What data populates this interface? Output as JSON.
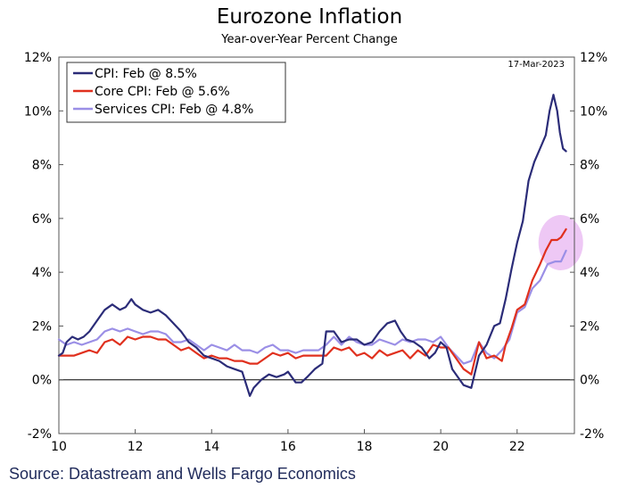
{
  "chart_data": {
    "type": "line",
    "title": "Eurozone Inflation",
    "subtitle": "Year-over-Year Percent Change",
    "date_stamp": "17-Mar-2023",
    "source": "Source: Datastream and Wells Fargo Economics",
    "x_ticks": [
      "10",
      "12",
      "14",
      "16",
      "18",
      "20",
      "22"
    ],
    "x_tick_values": [
      2010,
      2012,
      2014,
      2016,
      2018,
      2020,
      2022
    ],
    "y_ticks": [
      "-2%",
      "0%",
      "2%",
      "4%",
      "6%",
      "8%",
      "10%",
      "12%"
    ],
    "y_tick_values": [
      -2,
      0,
      2,
      4,
      6,
      8,
      10,
      12
    ],
    "xlim": [
      2010,
      2023.5
    ],
    "ylim": [
      -2,
      12
    ],
    "legend_position": "top-left",
    "highlight": {
      "x": 2023.05,
      "y": 5.1
    },
    "colors": {
      "cpi": "#2b2c78",
      "core": "#e0301e",
      "services": "#9b8fe6",
      "highlight": "#e8b6f2",
      "frame": "#555555",
      "stamp": "#c8c8e0"
    },
    "series": [
      {
        "key": "cpi",
        "name": "CPI: Feb @ 8.5%",
        "points": [
          [
            2010.0,
            0.9
          ],
          [
            2010.1,
            1.0
          ],
          [
            2010.2,
            1.4
          ],
          [
            2010.35,
            1.6
          ],
          [
            2010.5,
            1.5
          ],
          [
            2010.65,
            1.6
          ],
          [
            2010.8,
            1.8
          ],
          [
            2011.0,
            2.2
          ],
          [
            2011.2,
            2.6
          ],
          [
            2011.4,
            2.8
          ],
          [
            2011.6,
            2.6
          ],
          [
            2011.75,
            2.7
          ],
          [
            2011.9,
            3.0
          ],
          [
            2012.0,
            2.8
          ],
          [
            2012.2,
            2.6
          ],
          [
            2012.4,
            2.5
          ],
          [
            2012.6,
            2.6
          ],
          [
            2012.8,
            2.4
          ],
          [
            2013.0,
            2.1
          ],
          [
            2013.2,
            1.8
          ],
          [
            2013.4,
            1.4
          ],
          [
            2013.6,
            1.2
          ],
          [
            2013.8,
            0.9
          ],
          [
            2014.0,
            0.8
          ],
          [
            2014.2,
            0.7
          ],
          [
            2014.4,
            0.5
          ],
          [
            2014.6,
            0.4
          ],
          [
            2014.8,
            0.3
          ],
          [
            2015.0,
            -0.6
          ],
          [
            2015.1,
            -0.3
          ],
          [
            2015.3,
            0.0
          ],
          [
            2015.5,
            0.2
          ],
          [
            2015.7,
            0.1
          ],
          [
            2015.9,
            0.2
          ],
          [
            2016.0,
            0.3
          ],
          [
            2016.2,
            -0.1
          ],
          [
            2016.35,
            -0.1
          ],
          [
            2016.5,
            0.1
          ],
          [
            2016.7,
            0.4
          ],
          [
            2016.9,
            0.6
          ],
          [
            2017.0,
            1.8
          ],
          [
            2017.2,
            1.8
          ],
          [
            2017.4,
            1.4
          ],
          [
            2017.6,
            1.5
          ],
          [
            2017.8,
            1.5
          ],
          [
            2018.0,
            1.3
          ],
          [
            2018.2,
            1.4
          ],
          [
            2018.4,
            1.8
          ],
          [
            2018.6,
            2.1
          ],
          [
            2018.8,
            2.2
          ],
          [
            2018.95,
            1.8
          ],
          [
            2019.1,
            1.5
          ],
          [
            2019.3,
            1.4
          ],
          [
            2019.5,
            1.2
          ],
          [
            2019.7,
            0.8
          ],
          [
            2019.85,
            1.0
          ],
          [
            2020.0,
            1.4
          ],
          [
            2020.15,
            1.2
          ],
          [
            2020.3,
            0.4
          ],
          [
            2020.45,
            0.1
          ],
          [
            2020.6,
            -0.2
          ],
          [
            2020.8,
            -0.3
          ],
          [
            2021.0,
            0.9
          ],
          [
            2021.2,
            1.3
          ],
          [
            2021.4,
            2.0
          ],
          [
            2021.55,
            2.1
          ],
          [
            2021.7,
            3.0
          ],
          [
            2021.85,
            4.1
          ],
          [
            2022.0,
            5.1
          ],
          [
            2022.15,
            5.9
          ],
          [
            2022.3,
            7.4
          ],
          [
            2022.45,
            8.1
          ],
          [
            2022.6,
            8.6
          ],
          [
            2022.75,
            9.1
          ],
          [
            2022.85,
            10.0
          ],
          [
            2022.95,
            10.6
          ],
          [
            2023.05,
            10.0
          ],
          [
            2023.12,
            9.2
          ],
          [
            2023.2,
            8.6
          ],
          [
            2023.28,
            8.5
          ]
        ]
      },
      {
        "key": "core",
        "name": "Core CPI: Feb @ 5.6%",
        "points": [
          [
            2010.0,
            0.9
          ],
          [
            2010.2,
            0.9
          ],
          [
            2010.4,
            0.9
          ],
          [
            2010.6,
            1.0
          ],
          [
            2010.8,
            1.1
          ],
          [
            2011.0,
            1.0
          ],
          [
            2011.2,
            1.4
          ],
          [
            2011.4,
            1.5
          ],
          [
            2011.6,
            1.3
          ],
          [
            2011.8,
            1.6
          ],
          [
            2012.0,
            1.5
          ],
          [
            2012.2,
            1.6
          ],
          [
            2012.4,
            1.6
          ],
          [
            2012.6,
            1.5
          ],
          [
            2012.8,
            1.5
          ],
          [
            2013.0,
            1.3
          ],
          [
            2013.2,
            1.1
          ],
          [
            2013.4,
            1.2
          ],
          [
            2013.6,
            1.0
          ],
          [
            2013.8,
            0.8
          ],
          [
            2014.0,
            0.9
          ],
          [
            2014.2,
            0.8
          ],
          [
            2014.4,
            0.8
          ],
          [
            2014.6,
            0.7
          ],
          [
            2014.8,
            0.7
          ],
          [
            2015.0,
            0.6
          ],
          [
            2015.2,
            0.6
          ],
          [
            2015.4,
            0.8
          ],
          [
            2015.6,
            1.0
          ],
          [
            2015.8,
            0.9
          ],
          [
            2016.0,
            1.0
          ],
          [
            2016.2,
            0.8
          ],
          [
            2016.4,
            0.9
          ],
          [
            2016.6,
            0.9
          ],
          [
            2016.8,
            0.9
          ],
          [
            2017.0,
            0.9
          ],
          [
            2017.2,
            1.2
          ],
          [
            2017.4,
            1.1
          ],
          [
            2017.6,
            1.2
          ],
          [
            2017.8,
            0.9
          ],
          [
            2018.0,
            1.0
          ],
          [
            2018.2,
            0.8
          ],
          [
            2018.4,
            1.1
          ],
          [
            2018.6,
            0.9
          ],
          [
            2018.8,
            1.0
          ],
          [
            2019.0,
            1.1
          ],
          [
            2019.2,
            0.8
          ],
          [
            2019.4,
            1.1
          ],
          [
            2019.6,
            0.9
          ],
          [
            2019.8,
            1.3
          ],
          [
            2020.0,
            1.2
          ],
          [
            2020.2,
            1.2
          ],
          [
            2020.4,
            0.8
          ],
          [
            2020.6,
            0.4
          ],
          [
            2020.8,
            0.2
          ],
          [
            2021.0,
            1.4
          ],
          [
            2021.2,
            0.8
          ],
          [
            2021.4,
            0.9
          ],
          [
            2021.6,
            0.7
          ],
          [
            2021.7,
            1.3
          ],
          [
            2021.85,
            1.9
          ],
          [
            2022.0,
            2.6
          ],
          [
            2022.2,
            2.8
          ],
          [
            2022.4,
            3.7
          ],
          [
            2022.6,
            4.3
          ],
          [
            2022.75,
            4.8
          ],
          [
            2022.9,
            5.2
          ],
          [
            2023.05,
            5.2
          ],
          [
            2023.15,
            5.3
          ],
          [
            2023.28,
            5.6
          ]
        ]
      },
      {
        "key": "services",
        "name": "Services CPI: Feb @ 4.8%",
        "points": [
          [
            2010.0,
            1.5
          ],
          [
            2010.2,
            1.3
          ],
          [
            2010.4,
            1.4
          ],
          [
            2010.6,
            1.3
          ],
          [
            2010.8,
            1.4
          ],
          [
            2011.0,
            1.5
          ],
          [
            2011.2,
            1.8
          ],
          [
            2011.4,
            1.9
          ],
          [
            2011.6,
            1.8
          ],
          [
            2011.8,
            1.9
          ],
          [
            2012.0,
            1.8
          ],
          [
            2012.2,
            1.7
          ],
          [
            2012.4,
            1.8
          ],
          [
            2012.6,
            1.8
          ],
          [
            2012.8,
            1.7
          ],
          [
            2013.0,
            1.4
          ],
          [
            2013.2,
            1.4
          ],
          [
            2013.4,
            1.5
          ],
          [
            2013.6,
            1.3
          ],
          [
            2013.8,
            1.1
          ],
          [
            2014.0,
            1.3
          ],
          [
            2014.2,
            1.2
          ],
          [
            2014.4,
            1.1
          ],
          [
            2014.6,
            1.3
          ],
          [
            2014.8,
            1.1
          ],
          [
            2015.0,
            1.1
          ],
          [
            2015.2,
            1.0
          ],
          [
            2015.4,
            1.2
          ],
          [
            2015.6,
            1.3
          ],
          [
            2015.8,
            1.1
          ],
          [
            2016.0,
            1.1
          ],
          [
            2016.2,
            1.0
          ],
          [
            2016.4,
            1.1
          ],
          [
            2016.6,
            1.1
          ],
          [
            2016.8,
            1.1
          ],
          [
            2017.0,
            1.3
          ],
          [
            2017.2,
            1.6
          ],
          [
            2017.4,
            1.3
          ],
          [
            2017.6,
            1.6
          ],
          [
            2017.8,
            1.4
          ],
          [
            2018.0,
            1.3
          ],
          [
            2018.2,
            1.3
          ],
          [
            2018.4,
            1.5
          ],
          [
            2018.6,
            1.4
          ],
          [
            2018.8,
            1.3
          ],
          [
            2019.0,
            1.5
          ],
          [
            2019.2,
            1.4
          ],
          [
            2019.4,
            1.5
          ],
          [
            2019.6,
            1.5
          ],
          [
            2019.8,
            1.4
          ],
          [
            2020.0,
            1.6
          ],
          [
            2020.2,
            1.2
          ],
          [
            2020.4,
            0.9
          ],
          [
            2020.6,
            0.6
          ],
          [
            2020.8,
            0.7
          ],
          [
            2021.0,
            1.4
          ],
          [
            2021.2,
            1.0
          ],
          [
            2021.4,
            0.8
          ],
          [
            2021.6,
            1.1
          ],
          [
            2021.8,
            1.5
          ],
          [
            2022.0,
            2.5
          ],
          [
            2022.2,
            2.7
          ],
          [
            2022.4,
            3.4
          ],
          [
            2022.6,
            3.7
          ],
          [
            2022.8,
            4.3
          ],
          [
            2023.0,
            4.4
          ],
          [
            2023.15,
            4.4
          ],
          [
            2023.28,
            4.8
          ]
        ]
      }
    ]
  }
}
